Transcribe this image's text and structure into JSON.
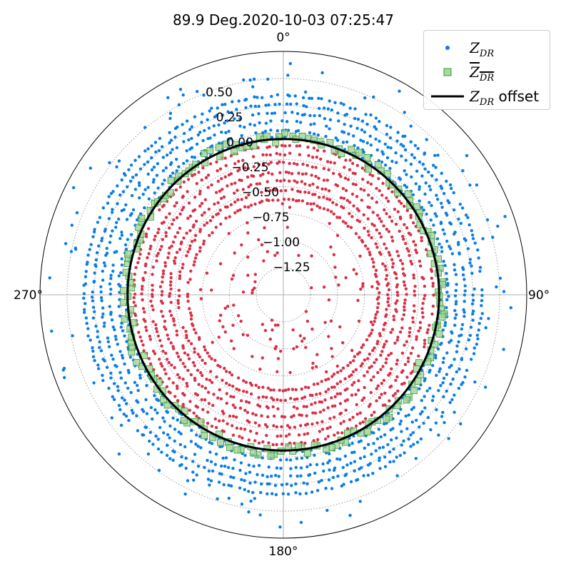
{
  "chart_data": {
    "type": "polar-scatter",
    "title": "89.9 Deg.2020-10-03 07:25:47",
    "angular_labels": [
      "0°",
      "90°",
      "180°",
      "270°"
    ],
    "angular_direction": "clockwise",
    "zero_location": "top",
    "radial_ticks": [
      "−1.25",
      "−1.00",
      "−0.75",
      "−0.50",
      "−0.25",
      "0.00",
      "0.25",
      "0.50"
    ],
    "radial_tick_values": [
      -1.25,
      -1.0,
      -0.75,
      -0.5,
      -0.25,
      0.0,
      0.25,
      0.5
    ],
    "radial_range": [
      -1.5,
      0.75
    ],
    "grid": true,
    "legend_position": "upper-right",
    "zdr_offset": -0.06,
    "series": [
      {
        "name": "Z_DR",
        "legend_main": "Z",
        "legend_sub": "DR",
        "legend_suffix": "",
        "marker": "dot",
        "color_positive": "#0a7de8",
        "color_negative": "#d93048",
        "rings": [
          -0.62,
          -0.53,
          -0.45,
          -0.37,
          -0.28,
          -0.2,
          -0.12,
          -0.05,
          0.02,
          0.1,
          0.18,
          0.26,
          0.34
        ]
      },
      {
        "name": "Z_DR mean",
        "legend_main": "Z",
        "legend_sub": "DR",
        "legend_suffix": "",
        "marker": "square",
        "color": "#3a9a3a",
        "ring_mean": -0.05,
        "ring_spread": 0.05
      },
      {
        "name": "Z_DR offset",
        "legend_main": "Z",
        "legend_sub": "DR",
        "legend_suffix": " offset",
        "marker": "line",
        "color": "#000000",
        "value": -0.06
      }
    ]
  }
}
